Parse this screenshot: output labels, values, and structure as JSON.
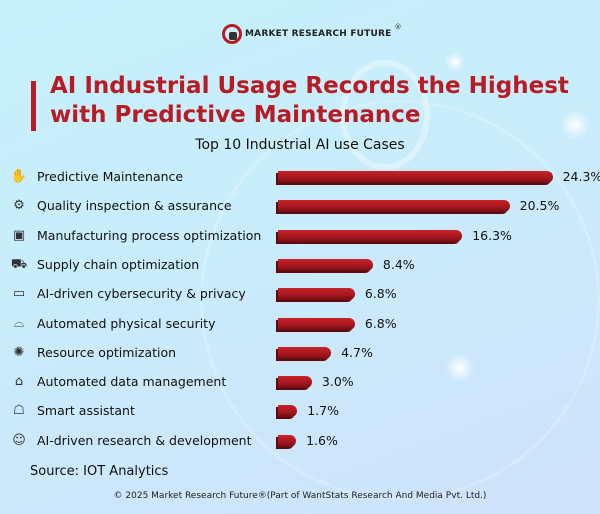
{
  "brand": {
    "name": "MARKET RESEARCH FUTURE",
    "reg": "®"
  },
  "title": "AI Industrial Usage Records the Highest with Predictive Maintenance",
  "colors": {
    "accent": "#b71c24",
    "background": "#c9ecfb",
    "bar": "#b71c24"
  },
  "chart_data": {
    "type": "bar",
    "orientation": "horizontal",
    "title": "Top 10 Industrial AI use Cases",
    "categories": [
      "Predictive Maintenance",
      "Quality inspection & assurance",
      "Manufacturing process optimization",
      "Supply chain optimization",
      "AI-driven cybersecurity & privacy",
      "Automated physical security",
      "Resource optimization",
      "Automated data management",
      "Smart assistant",
      "AI-driven research & development"
    ],
    "values": [
      24.3,
      20.5,
      16.3,
      8.4,
      6.8,
      6.8,
      4.7,
      3.0,
      1.7,
      1.6
    ],
    "value_labels": [
      "24.3%",
      "20.5%",
      "16.3%",
      "8.4%",
      "6.8%",
      "6.8%",
      "4.7%",
      "3.0%",
      "1.7%",
      "1.6%"
    ],
    "icons": [
      "wrench-hands-icon",
      "gears-icon",
      "factory-machine-icon",
      "delivery-truck-icon",
      "monitor-shield-icon",
      "vr-glasses-icon",
      "lightbulb-cycle-icon",
      "house-data-icon",
      "robot-icon",
      "head-chip-icon"
    ],
    "unit": "%",
    "grid": false,
    "legend": "none"
  },
  "source": "Source: IOT Analytics",
  "copyright": "© 2025 Market Research Future®(Part of WantStats Research And Media Pvt. Ltd.)"
}
